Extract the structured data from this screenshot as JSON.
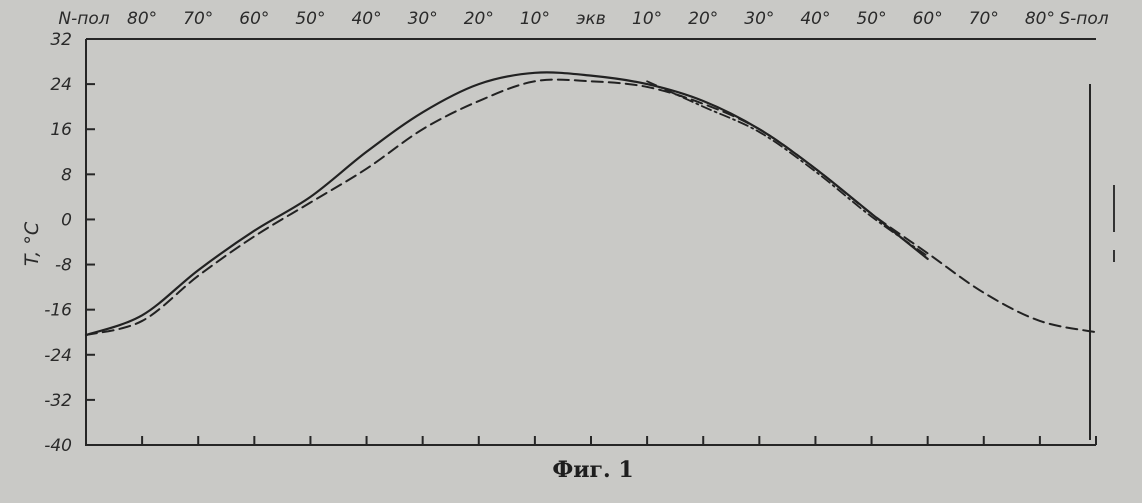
{
  "caption": "Фиг. 1",
  "chart_data": {
    "type": "line",
    "title": "",
    "ylabel": "T, °C",
    "xlabel": "",
    "ylim": [
      -40,
      32
    ],
    "xlim": [
      -90,
      90
    ],
    "grid": false,
    "yticks": [
      32,
      24,
      16,
      8,
      0,
      -8,
      -16,
      -24,
      -32,
      -40
    ],
    "ytick_labels": [
      "32",
      "24",
      "16",
      "8",
      "0",
      "-8",
      "-16",
      "-24",
      "-32",
      "-40"
    ],
    "xticks": [
      -90,
      -80,
      -70,
      -60,
      -50,
      -40,
      -30,
      -20,
      -10,
      0,
      10,
      20,
      30,
      40,
      50,
      60,
      70,
      80,
      90
    ],
    "xtick_labels": [
      "N-пол",
      "80°",
      "70°",
      "60°",
      "50°",
      "40°",
      "30°",
      "20°",
      "10°",
      "экв",
      "10°",
      "20°",
      "30°",
      "40°",
      "50°",
      "60°",
      "70°",
      "80°",
      "S-пол"
    ],
    "x": [
      -90,
      -80,
      -70,
      -60,
      -50,
      -40,
      -30,
      -20,
      -10,
      0,
      10,
      20,
      30,
      40,
      50,
      60,
      70,
      80,
      90
    ],
    "series": [
      {
        "style": "solid",
        "values": [
          -20.5,
          -17,
          -9,
          -2,
          4,
          12,
          19,
          24,
          26,
          25.5,
          24,
          21,
          16,
          9,
          1,
          -7,
          null,
          null,
          null
        ]
      },
      {
        "style": "dashed",
        "values": [
          -20.5,
          -18,
          -10,
          -3,
          3,
          9,
          16,
          21,
          24.5,
          24.5,
          23.5,
          20.5,
          16,
          9,
          1,
          -6,
          -13,
          -18,
          -20
        ]
      },
      {
        "style": "dash-dot",
        "values": [
          null,
          null,
          null,
          null,
          null,
          null,
          null,
          null,
          null,
          null,
          24.5,
          20,
          15.5,
          8.5,
          0.5,
          -6.5,
          null,
          null,
          null
        ]
      }
    ]
  }
}
